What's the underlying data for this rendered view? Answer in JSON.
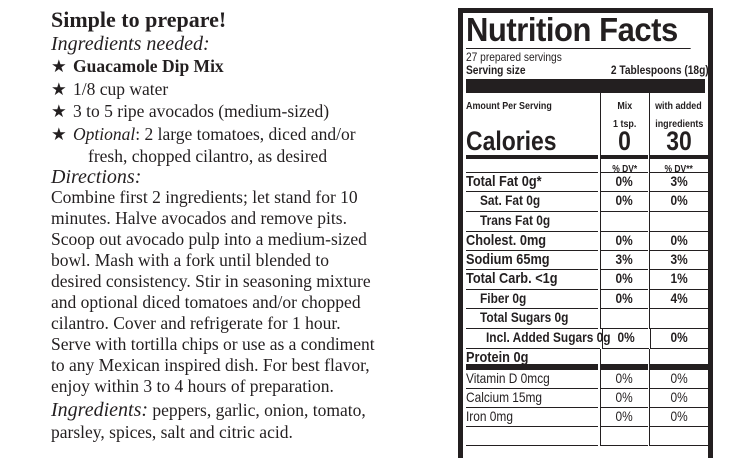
{
  "recipe": {
    "title": "Simple to prepare!",
    "ingredients_heading": "Ingredients needed:",
    "bullet_icon": "★",
    "items": [
      {
        "text": "Guacamole Dip Mix"
      },
      {
        "text": "1/8 cup water"
      },
      {
        "text": "3 to 5 ripe avocados (medium-sized)"
      },
      {
        "prefix": "Optional",
        "text": ": 2 large tomatoes, diced and/or",
        "continuation": "fresh, chopped cilantro, as desired"
      }
    ],
    "directions_heading": "Directions:",
    "directions_lines": [
      "Combine first 2 ingredients; let stand for 10",
      "minutes.  Halve avocados and remove pits.",
      "Scoop out avocado pulp into a medium-sized",
      "bowl.  Mash with a fork until blended to",
      "desired consistency.  Stir in seasoning mixture",
      "and optional diced tomatoes and/or chopped",
      "cilantro. Cover and refrigerate for 1 hour.",
      "Serve with tortilla chips or use as a condiment",
      "to any Mexican inspired dish.  For best flavor,",
      "enjoy within 3 to 4 hours of preparation."
    ],
    "ingredients_label": "Ingredients:",
    "ingredients_text": " peppers, garlic, onion, tomato,",
    "ingredients_text2": "parsley, spices, salt and citric acid."
  },
  "nutrition": {
    "title": "Nutrition Facts",
    "servings": "27 prepared servings",
    "serving_size_label": "Serving size",
    "serving_size_value": "2 Tablespoons (18g)",
    "amount_label": "Amount Per Serving",
    "col_mix": [
      "Mix",
      "1 tsp."
    ],
    "col_added": [
      "with added",
      "ingredients"
    ],
    "calories_label": "Calories",
    "calories_mix": "0",
    "calories_added": "30",
    "dv_mix": "% DV*",
    "dv_added": "% DV**",
    "rows": [
      {
        "bold": "Total Fat",
        "rest": " 0g*",
        "mix": "0%",
        "added": "3%"
      },
      {
        "label": "Sat. Fat 0g",
        "mix": "0%",
        "added": "0%"
      },
      {
        "label": "Trans Fat 0g",
        "mix": "",
        "added": ""
      },
      {
        "bold": "Cholest.",
        "rest": " 0mg",
        "mix": "0%",
        "added": "0%"
      },
      {
        "bold": "Sodium",
        "rest": " 65mg",
        "mix": "3%",
        "added": "3%"
      },
      {
        "bold": "Total Carb.",
        "rest": " <1g",
        "mix": "0%",
        "added": "1%"
      },
      {
        "label": "Fiber 0g",
        "mix": "0%",
        "added": "4%"
      },
      {
        "label": "Total Sugars 0g",
        "mix": "",
        "added": ""
      },
      {
        "label": "Incl. Added Sugars 0g",
        "mix": "0%",
        "added": "0%"
      },
      {
        "bold": "Protein",
        "rest": "  0g",
        "mix": "",
        "added": ""
      }
    ],
    "vitamins": [
      {
        "label": "Vitamin D 0mcg",
        "mix": "0%",
        "added": "0%"
      },
      {
        "label": "Calcium 15mg",
        "mix": "0%",
        "added": "0%"
      },
      {
        "label": "Iron 0mg",
        "mix": "0%",
        "added": "0%"
      }
    ]
  }
}
